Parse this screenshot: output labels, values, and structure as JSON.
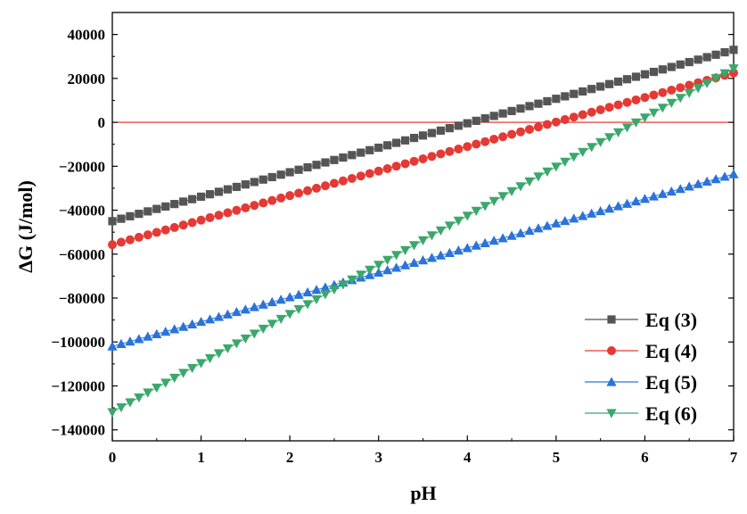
{
  "chart_data": {
    "type": "line",
    "title": "",
    "xlabel": "pH",
    "ylabel": "ΔG (J/mol)",
    "xlim": [
      0,
      7
    ],
    "ylim": [
      -145000,
      50000
    ],
    "x_ticks": [
      0,
      1,
      2,
      3,
      4,
      5,
      6,
      7
    ],
    "x_tick_labels": [
      "0",
      "1",
      "2",
      "3",
      "4",
      "5",
      "6",
      "7"
    ],
    "y_ticks": [
      40000,
      20000,
      0,
      -20000,
      -40000,
      -60000,
      -80000,
      -100000,
      -120000,
      -140000
    ],
    "y_tick_labels": [
      "40000",
      "20000",
      "0",
      "−20000",
      "−40000",
      "−60000",
      "−80000",
      "−100000",
      "−120000",
      "−140000"
    ],
    "grid": false,
    "legend_position": "bottom-right",
    "reference_line": {
      "y": 0,
      "color": "#e8261d"
    },
    "x_step": 0.1,
    "series": [
      {
        "name": "Eq (3)",
        "marker": "square",
        "color": "#555555",
        "x_start": 0,
        "x_end": 7,
        "y_start": -45000,
        "y_end": 33000
      },
      {
        "name": "Eq (4)",
        "marker": "circle",
        "color": "#e53935",
        "x_start": 0,
        "x_end": 7,
        "y_start": -55700,
        "y_end": 22500
      },
      {
        "name": "Eq (5)",
        "marker": "triangle-up",
        "color": "#2a73d9",
        "x_start": 0,
        "x_end": 7,
        "y_start": -102000,
        "y_end": -23600
      },
      {
        "name": "Eq (6)",
        "marker": "triangle-down",
        "color": "#3aa86b",
        "x_start": 0,
        "x_end": 7,
        "y_start": -132000,
        "y_end": 24500
      }
    ]
  }
}
